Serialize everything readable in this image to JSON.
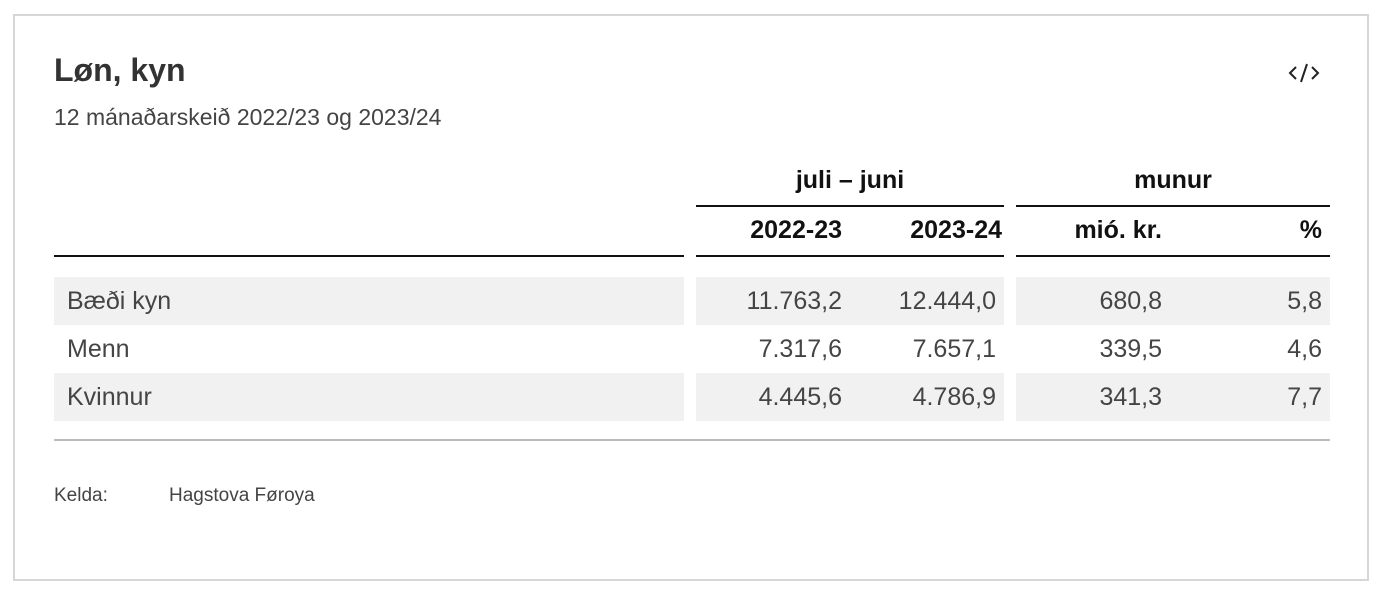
{
  "title": "Løn, kyn",
  "subtitle": "12 mánaðarskeið 2022/23 og 2023/24",
  "embed_icon": "code-embed-icon",
  "table": {
    "group_headers": [
      "juli – juni",
      "munur"
    ],
    "column_headers": [
      "",
      "2022-23",
      "2023-24",
      "mió. kr.",
      "%"
    ],
    "rows": [
      {
        "label": "Bæði kyn",
        "values": [
          "11.763,2",
          "12.444,0",
          "680,8",
          "5,8"
        ]
      },
      {
        "label": "Menn",
        "values": [
          "7.317,6",
          "7.657,1",
          "339,5",
          "4,6"
        ]
      },
      {
        "label": "Kvinnur",
        "values": [
          "4.445,6",
          "4.786,9",
          "341,3",
          "7,7"
        ]
      }
    ]
  },
  "source": {
    "label": "Kelda:",
    "value": "Hagstova Føroya"
  },
  "colors": {
    "row_shade": "#f1f1f1",
    "rule": "#111111",
    "footer_rule": "#bbbbbb",
    "border": "#d6d6d6"
  }
}
